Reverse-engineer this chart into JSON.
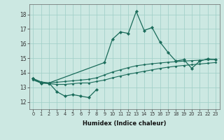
{
  "xlabel": "Humidex (Indice chaleur)",
  "x_ticks": [
    0,
    1,
    2,
    3,
    4,
    5,
    6,
    7,
    8,
    9,
    10,
    11,
    12,
    13,
    14,
    15,
    16,
    17,
    18,
    19,
    20,
    21,
    22,
    23
  ],
  "ylim": [
    11.5,
    18.7
  ],
  "yticks": [
    12,
    13,
    14,
    15,
    16,
    17,
    18
  ],
  "bg_color": "#cce8e2",
  "grid_color": "#9ecec6",
  "line_color": "#1a6b5a",
  "curve_upper": [
    13.6,
    13.3,
    13.3,
    null,
    null,
    null,
    null,
    null,
    null,
    14.7,
    16.3,
    16.8,
    16.7,
    18.2,
    16.9,
    17.1,
    16.1,
    15.4,
    14.8,
    14.9,
    14.3,
    14.8,
    14.95,
    14.9
  ],
  "curve_lower": [
    13.6,
    13.3,
    13.3,
    12.7,
    12.4,
    12.5,
    12.4,
    12.3,
    12.85,
    null,
    null,
    null,
    null,
    null,
    null,
    null,
    null,
    null,
    null,
    null,
    null,
    null,
    null,
    null
  ],
  "curve_line1": [
    13.5,
    13.3,
    13.25,
    13.2,
    13.2,
    13.25,
    13.3,
    13.3,
    13.4,
    13.5,
    13.65,
    13.78,
    13.9,
    14.0,
    14.1,
    14.2,
    14.3,
    14.38,
    14.45,
    14.5,
    14.55,
    14.6,
    14.65,
    14.7
  ],
  "curve_line2": [
    13.6,
    13.38,
    13.3,
    13.35,
    13.4,
    13.45,
    13.5,
    13.55,
    13.65,
    13.85,
    14.05,
    14.2,
    14.35,
    14.48,
    14.55,
    14.62,
    14.67,
    14.72,
    14.76,
    14.8,
    14.83,
    14.86,
    14.9,
    14.92
  ]
}
